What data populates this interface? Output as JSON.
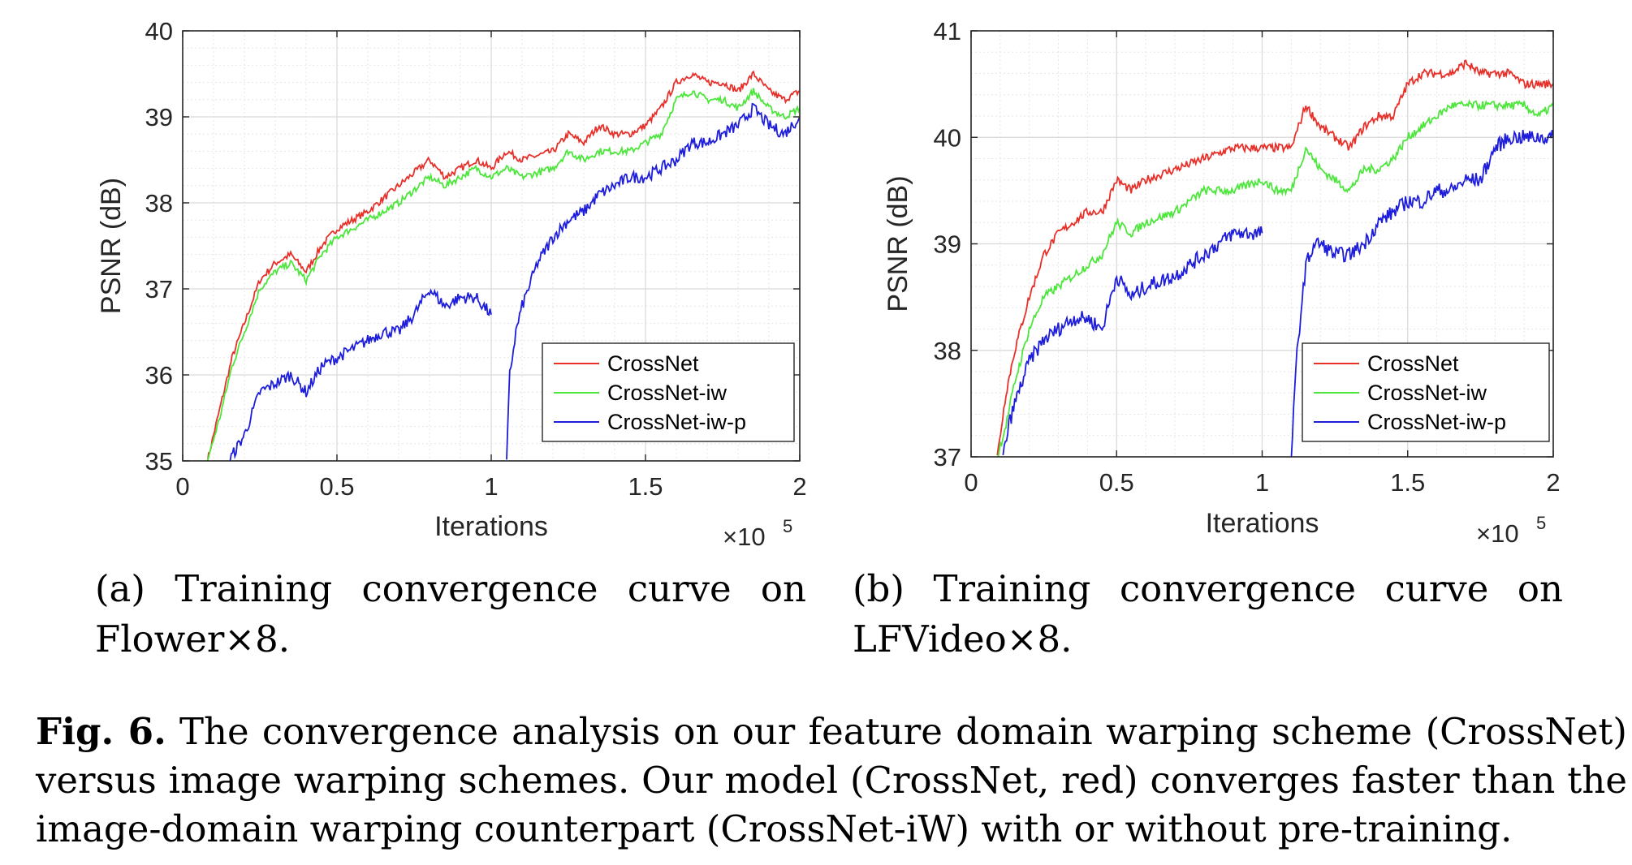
{
  "chart_data": [
    {
      "type": "line",
      "xlabel": "Iterations",
      "ylabel": "PSNR (dB)",
      "x_multiplier": "×10",
      "x_multiplier_exp": "5",
      "xlim": [
        0,
        2
      ],
      "ylim": [
        35,
        40
      ],
      "xticks": [
        "0",
        "0.5",
        "1",
        "1.5",
        "2"
      ],
      "yticks": [
        "35",
        "36",
        "37",
        "38",
        "39",
        "40"
      ],
      "grid": true,
      "legend_position": "bottom-right",
      "series": [
        {
          "name": "CrossNet",
          "color": "#e8302a",
          "x": [
            0.08,
            0.12,
            0.16,
            0.2,
            0.25,
            0.3,
            0.35,
            0.4,
            0.45,
            0.5,
            0.6,
            0.7,
            0.8,
            0.85,
            0.9,
            0.95,
            1.0,
            1.05,
            1.1,
            1.2,
            1.25,
            1.3,
            1.35,
            1.4,
            1.45,
            1.5,
            1.55,
            1.6,
            1.65,
            1.7,
            1.75,
            1.8,
            1.85,
            1.9,
            1.95,
            2.0
          ],
          "values": [
            35.0,
            35.6,
            36.2,
            36.6,
            37.1,
            37.3,
            37.4,
            37.2,
            37.5,
            37.7,
            37.9,
            38.2,
            38.5,
            38.3,
            38.4,
            38.5,
            38.4,
            38.6,
            38.5,
            38.6,
            38.8,
            38.7,
            38.9,
            38.8,
            38.8,
            38.9,
            39.1,
            39.4,
            39.5,
            39.4,
            39.4,
            39.3,
            39.5,
            39.3,
            39.2,
            39.3
          ]
        },
        {
          "name": "CrossNet-iw",
          "color": "#4de63c",
          "x": [
            0.08,
            0.12,
            0.16,
            0.2,
            0.25,
            0.3,
            0.35,
            0.4,
            0.45,
            0.5,
            0.6,
            0.7,
            0.8,
            0.85,
            0.9,
            0.95,
            1.0,
            1.05,
            1.1,
            1.2,
            1.25,
            1.3,
            1.35,
            1.4,
            1.45,
            1.5,
            1.55,
            1.6,
            1.65,
            1.7,
            1.75,
            1.8,
            1.85,
            1.9,
            1.95,
            2.0
          ],
          "values": [
            35.0,
            35.5,
            36.1,
            36.5,
            37.0,
            37.2,
            37.3,
            37.1,
            37.4,
            37.6,
            37.8,
            38.0,
            38.3,
            38.2,
            38.3,
            38.4,
            38.3,
            38.4,
            38.3,
            38.4,
            38.6,
            38.5,
            38.6,
            38.6,
            38.6,
            38.7,
            38.8,
            39.2,
            39.3,
            39.2,
            39.2,
            39.1,
            39.3,
            39.1,
            39.0,
            39.1
          ]
        },
        {
          "name": "CrossNet-iw-p",
          "color": "#1d1ddb",
          "segments": [
            {
              "x": [
                0.15,
                0.2,
                0.25,
                0.3,
                0.35,
                0.4,
                0.45,
                0.5,
                0.55,
                0.6,
                0.65,
                0.7,
                0.75,
                0.8,
                0.85,
                0.9,
                0.95,
                1.0
              ],
              "values": [
                35.0,
                35.3,
                35.8,
                35.9,
                36.0,
                35.8,
                36.1,
                36.2,
                36.3,
                36.4,
                36.5,
                36.5,
                36.7,
                37.0,
                36.8,
                36.9,
                36.9,
                36.7
              ]
            },
            {
              "x": [
                1.05,
                1.06,
                1.08,
                1.1,
                1.15,
                1.2,
                1.25,
                1.3,
                1.35,
                1.4,
                1.45,
                1.5,
                1.55,
                1.6,
                1.65,
                1.7,
                1.75,
                1.8,
                1.85,
                1.9,
                1.95,
                2.0
              ],
              "values": [
                35.0,
                36.0,
                36.5,
                36.8,
                37.3,
                37.6,
                37.8,
                37.9,
                38.1,
                38.2,
                38.3,
                38.3,
                38.4,
                38.5,
                38.7,
                38.7,
                38.8,
                38.9,
                39.1,
                38.9,
                38.8,
                39.0
              ]
            }
          ]
        }
      ],
      "caption": "(a) Training convergence curve on Flower×8."
    },
    {
      "type": "line",
      "xlabel": "Iterations",
      "ylabel": "PSNR (dB)",
      "x_multiplier": "×10",
      "x_multiplier_exp": "5",
      "xlim": [
        0,
        2
      ],
      "ylim": [
        37,
        41
      ],
      "xticks": [
        "0",
        "0.5",
        "1",
        "1.5",
        "2"
      ],
      "yticks": [
        "37",
        "38",
        "39",
        "40",
        "41"
      ],
      "grid": true,
      "legend_position": "bottom-right",
      "series": [
        {
          "name": "CrossNet",
          "color": "#e8302a",
          "x": [
            0.09,
            0.12,
            0.15,
            0.2,
            0.25,
            0.3,
            0.35,
            0.4,
            0.45,
            0.5,
            0.55,
            0.6,
            0.7,
            0.8,
            0.9,
            1.0,
            1.05,
            1.1,
            1.15,
            1.2,
            1.25,
            1.3,
            1.35,
            1.4,
            1.45,
            1.5,
            1.55,
            1.6,
            1.65,
            1.7,
            1.75,
            1.8,
            1.85,
            1.9,
            1.95,
            2.0
          ],
          "values": [
            37.0,
            37.6,
            38.0,
            38.5,
            38.9,
            39.1,
            39.2,
            39.3,
            39.3,
            39.6,
            39.5,
            39.6,
            39.7,
            39.8,
            39.9,
            39.9,
            39.9,
            39.9,
            40.3,
            40.1,
            40.0,
            39.9,
            40.1,
            40.2,
            40.2,
            40.5,
            40.6,
            40.6,
            40.6,
            40.7,
            40.6,
            40.6,
            40.6,
            40.5,
            40.5,
            40.5
          ]
        },
        {
          "name": "CrossNet-iw",
          "color": "#4de63c",
          "x": [
            0.09,
            0.12,
            0.15,
            0.2,
            0.25,
            0.3,
            0.35,
            0.4,
            0.45,
            0.5,
            0.55,
            0.6,
            0.7,
            0.8,
            0.9,
            1.0,
            1.05,
            1.1,
            1.15,
            1.2,
            1.25,
            1.3,
            1.35,
            1.4,
            1.45,
            1.5,
            1.55,
            1.6,
            1.65,
            1.7,
            1.75,
            1.8,
            1.85,
            1.9,
            1.95,
            2.0
          ],
          "values": [
            37.0,
            37.3,
            37.7,
            38.2,
            38.5,
            38.6,
            38.7,
            38.8,
            38.9,
            39.2,
            39.1,
            39.2,
            39.3,
            39.5,
            39.5,
            39.6,
            39.5,
            39.5,
            39.9,
            39.7,
            39.6,
            39.5,
            39.7,
            39.7,
            39.8,
            40.0,
            40.1,
            40.2,
            40.3,
            40.3,
            40.3,
            40.3,
            40.3,
            40.3,
            40.2,
            40.3
          ]
        },
        {
          "name": "CrossNet-iw-p",
          "color": "#1d1ddb",
          "segments": [
            {
              "x": [
                0.11,
                0.13,
                0.15,
                0.2,
                0.25,
                0.3,
                0.35,
                0.4,
                0.45,
                0.5,
                0.55,
                0.6,
                0.7,
                0.8,
                0.85,
                0.9,
                0.95,
                1.0
              ],
              "values": [
                37.0,
                37.3,
                37.5,
                37.9,
                38.1,
                38.2,
                38.3,
                38.3,
                38.2,
                38.7,
                38.5,
                38.6,
                38.7,
                38.9,
                39.0,
                39.1,
                39.1,
                39.1
              ]
            },
            {
              "x": [
                1.1,
                1.12,
                1.15,
                1.18,
                1.2,
                1.25,
                1.3,
                1.35,
                1.4,
                1.45,
                1.5,
                1.55,
                1.6,
                1.65,
                1.7,
                1.75,
                1.8,
                1.85,
                1.9,
                1.95,
                2.0
              ],
              "values": [
                37.0,
                38.0,
                38.8,
                39.0,
                39.0,
                38.9,
                38.9,
                39.0,
                39.2,
                39.3,
                39.4,
                39.4,
                39.5,
                39.5,
                39.6,
                39.6,
                39.9,
                40.0,
                40.0,
                40.0,
                40.0
              ]
            }
          ]
        }
      ],
      "caption": "(b) Training convergence curve on LFVideo×8."
    }
  ],
  "caption": {
    "label": "Fig. 6.",
    "text": "The convergence analysis on our feature domain warping scheme (CrossNet) versus image warping schemes. Our model (CrossNet, red) converges faster than the image-domain warping counterpart (CrossNet-iW) with or without pre-training."
  }
}
